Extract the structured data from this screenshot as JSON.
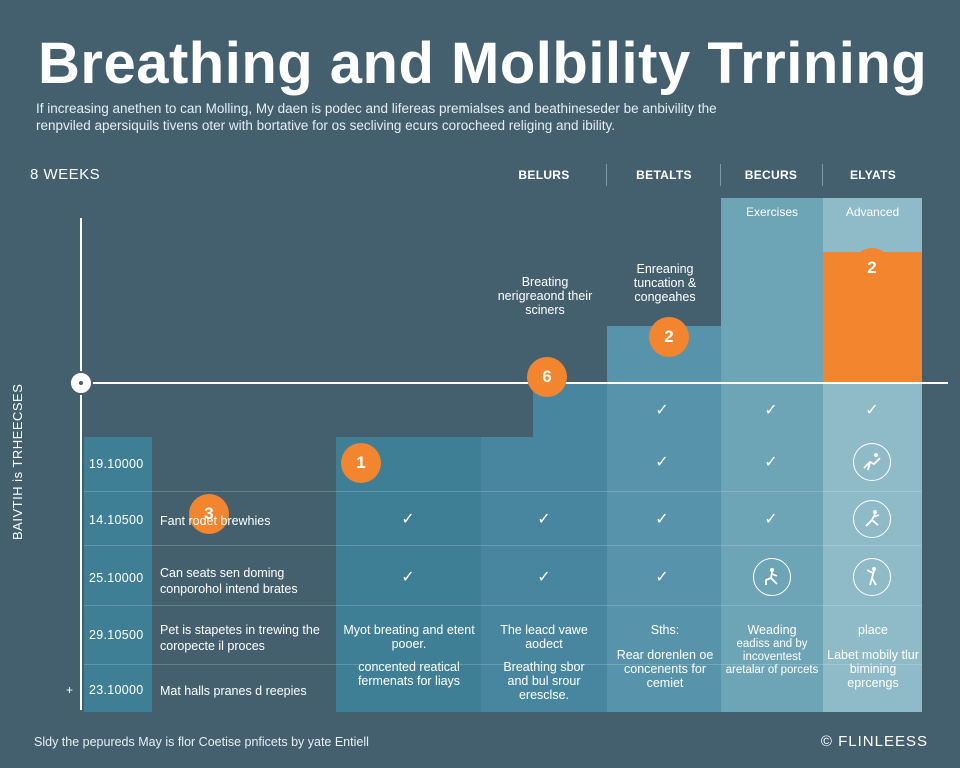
{
  "title": "Breathing and Molbility Trrining",
  "intro": "If increasing anethen to can Molling, My daen is podec and lifereas premialses and beathineseder be anbivility the renpviled apersiquils tivens oter with bortative for os secliving ecurs corocheed religing and ibility.",
  "weeks_label": "8 WEEKS",
  "y_axis_title": "BAIVTIH is TRHEECSES",
  "columns": [
    {
      "label": "BELURS"
    },
    {
      "label": "BETALTS"
    },
    {
      "label": "BECURS"
    },
    {
      "label": "ELYATS"
    }
  ],
  "colors": {
    "background": "#44606f",
    "accent": "#f2852e",
    "block_dark": "#3f7f95",
    "block_mid": "#4a8ca1",
    "block_light": "#6ea5b6",
    "block_lighter": "#8fbac7"
  },
  "rows": [
    {
      "value": "19.10000",
      "text": ""
    },
    {
      "value": "14.10500",
      "text": "Fant        rodet brewhies"
    },
    {
      "value": "25.10000",
      "text": "Can seats sen doming conporohol intend brates"
    },
    {
      "value": "29.10500",
      "text": "Pet is stapetes in trewing the coropecte il proces"
    },
    {
      "value": "23.10000",
      "text": "Mat halls pranes d reepies"
    }
  ],
  "tiers": {
    "exercises": "Exercises",
    "advanced": "Advanced",
    "breathing_note": "Breating nerigreaond their sciners",
    "enreaning_note": "Enreaning tuncation & congeahes"
  },
  "badges": {
    "b_six": "6",
    "b_two_mid": "2",
    "b_two_top": "2",
    "b_one": "1",
    "b_three": "3"
  },
  "check_glyph": "✓",
  "bottom_cells": {
    "c1_top": "Myot breating and etent pooer.",
    "c1_bottom": "concented reatical fermenats for liays",
    "c2_top": "The leacd vawe aodect",
    "c2_bottom": "Breathing sbor and bul srour eresclse.",
    "c3_top": "Sths:",
    "c3_bottom": "Rear dorenlen oe concenents for cemiet",
    "c4_top": "Weading",
    "c4_bottom": "eadiss and by incoventest aretalar of porcets",
    "c5_top": "place",
    "c5_bottom": "Labet mobily tlur bimining eprcengs"
  },
  "icons": {
    "r1c5": "stretch-person-icon",
    "r2c5": "lunge-person-icon",
    "r3c4": "kneeling-person-icon",
    "r3c5": "standing-stretch-icon"
  },
  "footer_note": "Sldy the pepureds May is flor Coetise pnficets by yate Entiell",
  "brand": "© FLINLEESS"
}
